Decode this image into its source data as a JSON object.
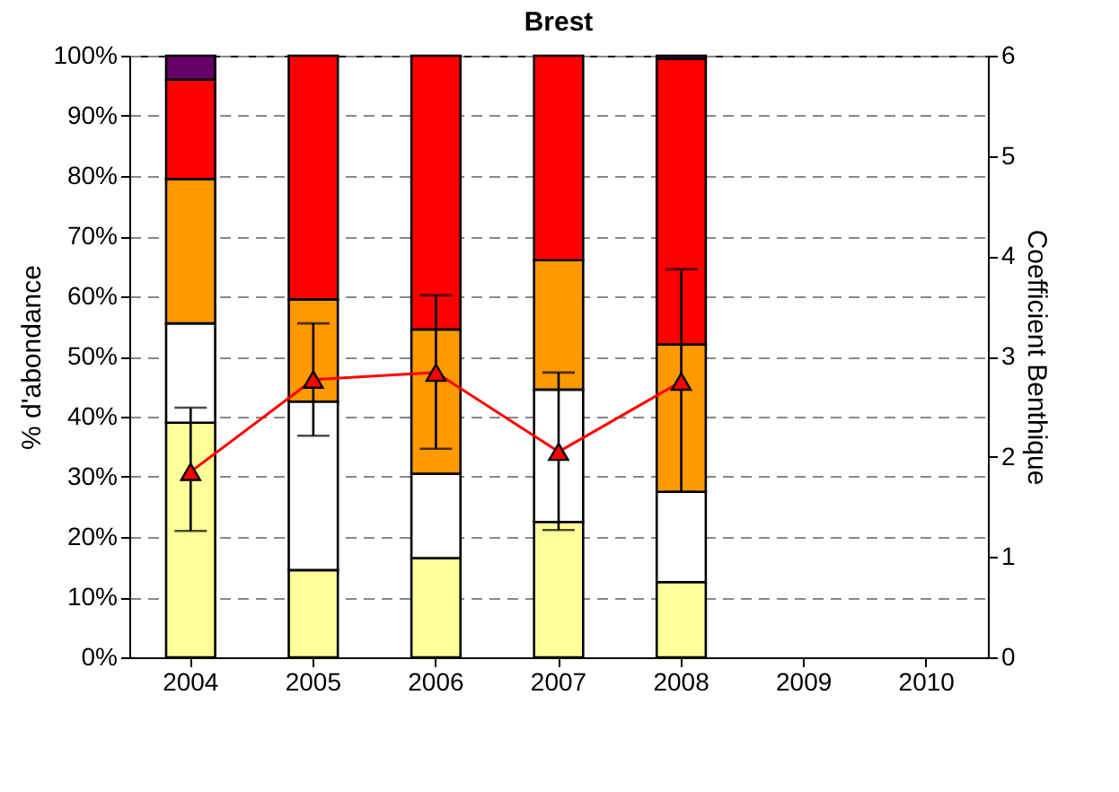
{
  "chart_data": {
    "type": "bar",
    "title": "Brest",
    "ylabel": "% d'abondance",
    "y2label": "Coefficient Benthique",
    "categories": [
      "2004",
      "2005",
      "2006",
      "2007",
      "2008",
      "2009",
      "2010"
    ],
    "stacked": true,
    "grid": "y",
    "marker": "triangle",
    "ylim": [
      0,
      100
    ],
    "yticks": [
      {
        "value": 0,
        "label": "0%"
      },
      {
        "value": 10,
        "label": "10%"
      },
      {
        "value": 20,
        "label": "20%"
      },
      {
        "value": 30,
        "label": "30%"
      },
      {
        "value": 40,
        "label": "40%"
      },
      {
        "value": 50,
        "label": "50%"
      },
      {
        "value": 60,
        "label": "60%"
      },
      {
        "value": 70,
        "label": "70%"
      },
      {
        "value": 80,
        "label": "80%"
      },
      {
        "value": 90,
        "label": "90%"
      },
      {
        "value": 100,
        "label": "100%"
      }
    ],
    "y2lim": [
      0,
      6
    ],
    "y2ticks": [
      0,
      1,
      2,
      3,
      4,
      5,
      6
    ],
    "series": [
      {
        "color": "#ffff99",
        "values": [
          39,
          14.5,
          16.5,
          22.5,
          12.5,
          null,
          null
        ]
      },
      {
        "color": "#ffffff",
        "values": [
          16.5,
          28,
          14,
          22,
          15,
          null,
          null
        ]
      },
      {
        "color": "#ff9900",
        "values": [
          24,
          17,
          24,
          21.5,
          24.5,
          null,
          null
        ]
      },
      {
        "color": "#ff0000",
        "values": [
          16.5,
          40.5,
          45.5,
          34,
          47.5,
          null,
          null
        ]
      },
      {
        "color": "#660066",
        "values": [
          4,
          null,
          null,
          null,
          0.5,
          null,
          null
        ]
      },
      {
        "type": "line",
        "axis": "y2",
        "color": "#ff0000",
        "values": [
          1.85,
          2.77,
          2.84,
          2.05,
          2.75,
          null,
          null
        ],
        "errors": [
          [
            1.26,
            2.49
          ],
          [
            2.21,
            3.33
          ],
          [
            2.08,
            3.61
          ],
          [
            1.27,
            2.84
          ],
          [
            1.65,
            3.87
          ],
          null,
          null
        ]
      }
    ]
  }
}
